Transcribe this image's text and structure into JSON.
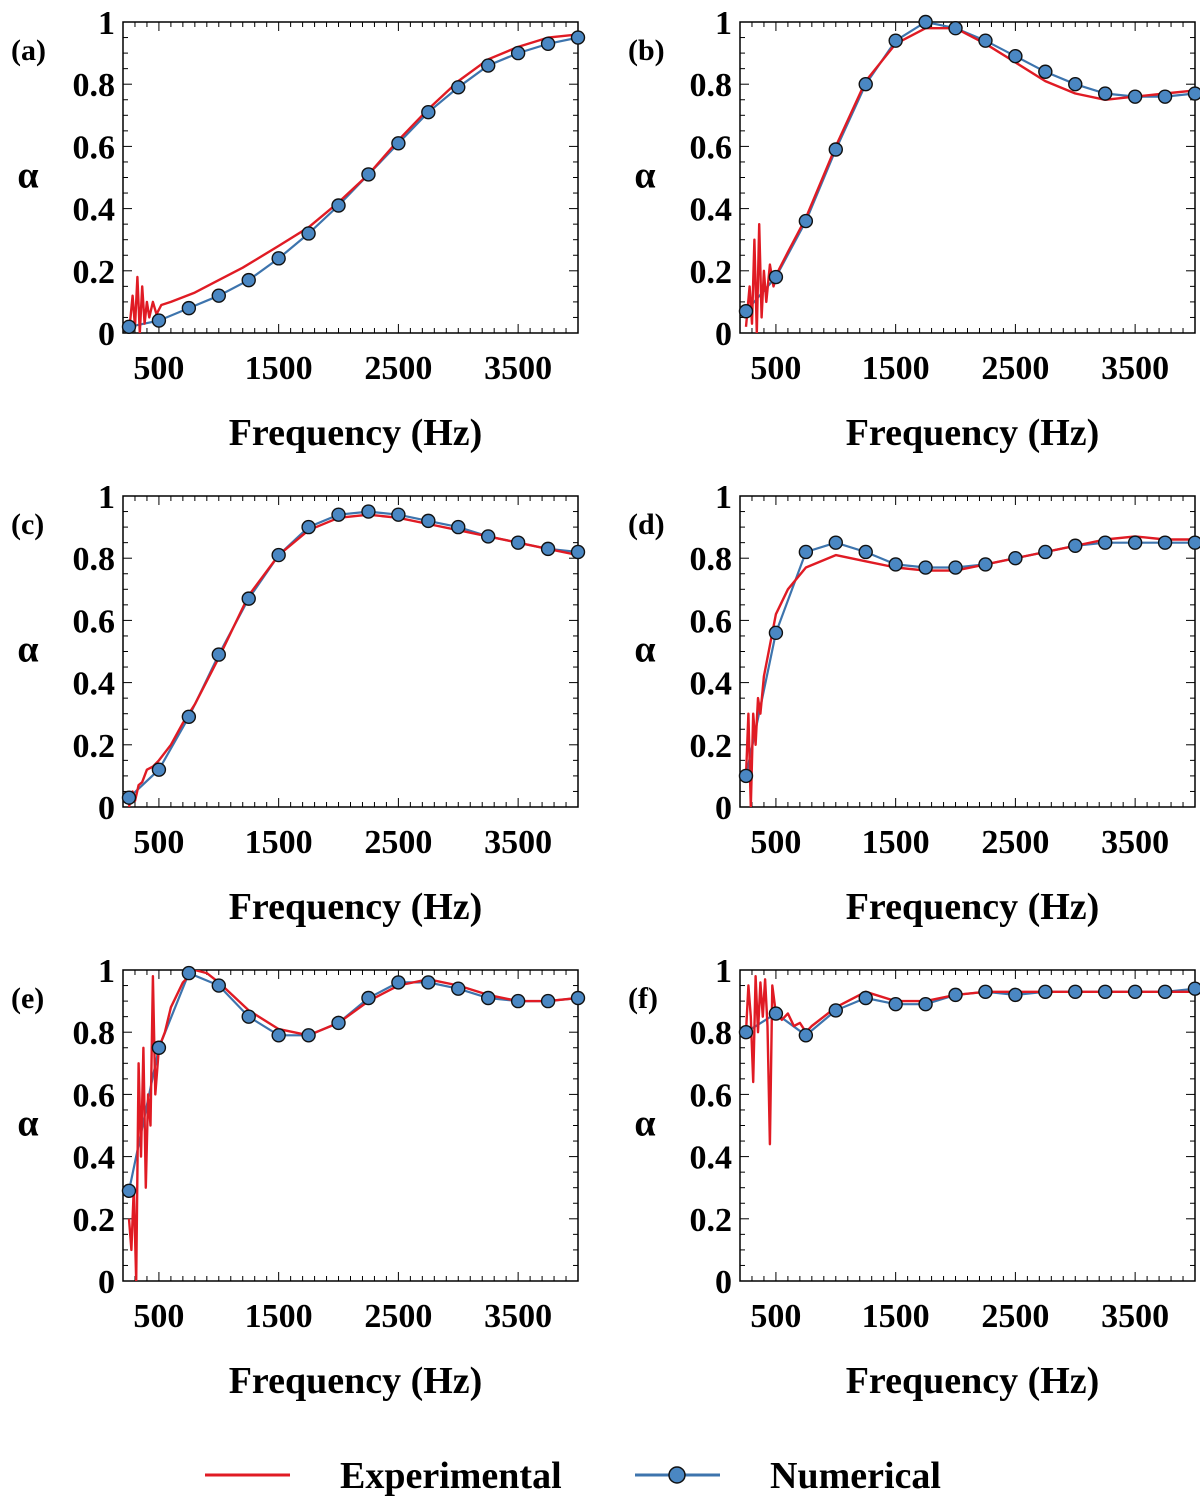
{
  "chart_data": [
    {
      "type": "line",
      "panel_label": "(a)",
      "xlabel": "Frequency (Hz)",
      "ylabel": "α",
      "xlim": [
        200,
        4000
      ],
      "ylim": [
        0,
        1
      ],
      "x_ticks": [
        500,
        1500,
        2500,
        3500
      ],
      "y_ticks": [
        0,
        0.2,
        0.4,
        0.6,
        0.8,
        1
      ],
      "y_tick_labels": [
        "0",
        "0.2",
        "0.4",
        "0.6",
        "0.8",
        "1"
      ],
      "series": [
        {
          "name": "Experimental",
          "x": [
            250,
            280,
            300,
            320,
            340,
            360,
            380,
            400,
            420,
            450,
            480,
            520,
            600,
            800,
            1000,
            1200,
            1500,
            1750,
            2000,
            2250,
            2500,
            2750,
            3000,
            3250,
            3500,
            3750,
            4000
          ],
          "y": [
            0.0,
            0.12,
            0.02,
            0.18,
            0.0,
            0.15,
            0.03,
            0.1,
            0.05,
            0.1,
            0.06,
            0.09,
            0.1,
            0.13,
            0.17,
            0.21,
            0.28,
            0.34,
            0.42,
            0.51,
            0.62,
            0.72,
            0.81,
            0.88,
            0.92,
            0.95,
            0.96
          ]
        },
        {
          "name": "Numerical",
          "x": [
            250,
            500,
            750,
            1000,
            1250,
            1500,
            1750,
            2000,
            2250,
            2500,
            2750,
            3000,
            3250,
            3500,
            3750,
            4000
          ],
          "y": [
            0.02,
            0.04,
            0.08,
            0.12,
            0.17,
            0.24,
            0.32,
            0.41,
            0.51,
            0.61,
            0.71,
            0.79,
            0.86,
            0.9,
            0.93,
            0.95
          ]
        }
      ]
    },
    {
      "type": "line",
      "panel_label": "(b)",
      "xlabel": "Frequency (Hz)",
      "ylabel": "α",
      "xlim": [
        200,
        4000
      ],
      "ylim": [
        0,
        1
      ],
      "x_ticks": [
        500,
        1500,
        2500,
        3500
      ],
      "y_ticks": [
        0,
        0.2,
        0.4,
        0.6,
        0.8,
        1
      ],
      "y_tick_labels": [
        "0",
        "0.2",
        "0.4",
        "0.6",
        "0.8",
        "1"
      ],
      "series": [
        {
          "name": "Experimental",
          "x": [
            250,
            280,
            300,
            320,
            340,
            360,
            380,
            400,
            420,
            450,
            480,
            520,
            600,
            750,
            1000,
            1250,
            1500,
            1750,
            2000,
            2250,
            2500,
            2750,
            3000,
            3250,
            3500,
            3750,
            4000
          ],
          "y": [
            0.02,
            0.15,
            0.03,
            0.3,
            0.0,
            0.35,
            0.05,
            0.2,
            0.1,
            0.22,
            0.15,
            0.2,
            0.26,
            0.37,
            0.6,
            0.81,
            0.93,
            0.98,
            0.98,
            0.93,
            0.87,
            0.81,
            0.77,
            0.75,
            0.76,
            0.77,
            0.78
          ]
        },
        {
          "name": "Numerical",
          "x": [
            250,
            500,
            750,
            1000,
            1250,
            1500,
            1750,
            2000,
            2250,
            2500,
            2750,
            3000,
            3250,
            3500,
            3750,
            4000
          ],
          "y": [
            0.07,
            0.18,
            0.36,
            0.59,
            0.8,
            0.94,
            1.0,
            0.98,
            0.94,
            0.89,
            0.84,
            0.8,
            0.77,
            0.76,
            0.76,
            0.77
          ]
        }
      ]
    },
    {
      "type": "line",
      "panel_label": "(c)",
      "xlabel": "Frequency (Hz)",
      "ylabel": "α",
      "xlim": [
        200,
        4000
      ],
      "ylim": [
        0,
        1
      ],
      "x_ticks": [
        500,
        1500,
        2500,
        3500
      ],
      "y_ticks": [
        0,
        0.2,
        0.4,
        0.6,
        0.8,
        1
      ],
      "y_tick_labels": [
        "0",
        "0.2",
        "0.4",
        "0.6",
        "0.8",
        "1"
      ],
      "series": [
        {
          "name": "Experimental",
          "x": [
            250,
            280,
            300,
            330,
            360,
            400,
            450,
            500,
            600,
            700,
            800,
            1000,
            1250,
            1500,
            1750,
            2000,
            2250,
            2500,
            2750,
            3000,
            3250,
            3500,
            3750,
            4000
          ],
          "y": [
            0.0,
            0.05,
            0.02,
            0.07,
            0.08,
            0.12,
            0.13,
            0.15,
            0.2,
            0.27,
            0.33,
            0.48,
            0.68,
            0.81,
            0.89,
            0.93,
            0.94,
            0.93,
            0.91,
            0.89,
            0.87,
            0.85,
            0.83,
            0.81
          ]
        },
        {
          "name": "Numerical",
          "x": [
            250,
            500,
            750,
            1000,
            1250,
            1500,
            1750,
            2000,
            2250,
            2500,
            2750,
            3000,
            3250,
            3500,
            3750,
            4000
          ],
          "y": [
            0.03,
            0.12,
            0.29,
            0.49,
            0.67,
            0.81,
            0.9,
            0.94,
            0.95,
            0.94,
            0.92,
            0.9,
            0.87,
            0.85,
            0.83,
            0.82
          ]
        }
      ]
    },
    {
      "type": "line",
      "panel_label": "(d)",
      "xlabel": "Frequency (Hz)",
      "ylabel": "α",
      "xlim": [
        200,
        4000
      ],
      "ylim": [
        0,
        1
      ],
      "x_ticks": [
        500,
        1500,
        2500,
        3500
      ],
      "y_ticks": [
        0,
        0.2,
        0.4,
        0.6,
        0.8,
        1
      ],
      "y_tick_labels": [
        "0",
        "0.2",
        "0.4",
        "0.6",
        "0.8",
        "1"
      ],
      "series": [
        {
          "name": "Experimental",
          "x": [
            250,
            270,
            290,
            310,
            330,
            350,
            370,
            400,
            450,
            500,
            600,
            750,
            1000,
            1250,
            1500,
            1750,
            2000,
            2250,
            2500,
            2750,
            3000,
            3250,
            3500,
            3750,
            4000
          ],
          "y": [
            0.1,
            0.3,
            0.0,
            0.3,
            0.2,
            0.35,
            0.3,
            0.42,
            0.52,
            0.62,
            0.7,
            0.77,
            0.81,
            0.79,
            0.77,
            0.76,
            0.76,
            0.78,
            0.8,
            0.82,
            0.84,
            0.86,
            0.87,
            0.86,
            0.86
          ]
        },
        {
          "name": "Numerical",
          "x": [
            250,
            500,
            750,
            1000,
            1250,
            1500,
            1750,
            2000,
            2250,
            2500,
            2750,
            3000,
            3250,
            3500,
            3750,
            4000
          ],
          "y": [
            0.1,
            0.56,
            0.82,
            0.85,
            0.82,
            0.78,
            0.77,
            0.77,
            0.78,
            0.8,
            0.82,
            0.84,
            0.85,
            0.85,
            0.85,
            0.85
          ]
        }
      ]
    },
    {
      "type": "line",
      "panel_label": "(e)",
      "xlabel": "Frequency (Hz)",
      "ylabel": "α",
      "xlim": [
        200,
        4000
      ],
      "ylim": [
        0,
        1
      ],
      "x_ticks": [
        500,
        1500,
        2500,
        3500
      ],
      "y_ticks": [
        0,
        0.2,
        0.4,
        0.6,
        0.8,
        1
      ],
      "y_tick_labels": [
        "0",
        "0.2",
        "0.4",
        "0.6",
        "0.8",
        "1"
      ],
      "series": [
        {
          "name": "Experimental",
          "x": [
            250,
            270,
            290,
            310,
            330,
            350,
            370,
            390,
            410,
            430,
            450,
            470,
            500,
            550,
            600,
            700,
            800,
            900,
            1000,
            1250,
            1500,
            1750,
            2000,
            2250,
            2500,
            2750,
            3000,
            3250,
            3500,
            3750,
            4000
          ],
          "y": [
            0.2,
            0.1,
            0.3,
            0.0,
            0.7,
            0.4,
            0.75,
            0.3,
            0.6,
            0.5,
            0.98,
            0.6,
            0.75,
            0.8,
            0.88,
            0.96,
            1.0,
            0.99,
            0.96,
            0.87,
            0.81,
            0.79,
            0.83,
            0.9,
            0.95,
            0.97,
            0.95,
            0.92,
            0.9,
            0.9,
            0.91
          ]
        },
        {
          "name": "Numerical",
          "x": [
            250,
            500,
            750,
            1000,
            1250,
            1500,
            1750,
            2000,
            2250,
            2500,
            2750,
            3000,
            3250,
            3500,
            3750,
            4000
          ],
          "y": [
            0.29,
            0.75,
            0.99,
            0.95,
            0.85,
            0.79,
            0.79,
            0.83,
            0.91,
            0.96,
            0.96,
            0.94,
            0.91,
            0.9,
            0.9,
            0.91
          ]
        }
      ]
    },
    {
      "type": "line",
      "panel_label": "(f)",
      "xlabel": "Frequency (Hz)",
      "ylabel": "α",
      "xlim": [
        200,
        4000
      ],
      "ylim": [
        0,
        1
      ],
      "x_ticks": [
        500,
        1500,
        2500,
        3500
      ],
      "y_ticks": [
        0,
        0.2,
        0.4,
        0.6,
        0.8,
        1
      ],
      "y_tick_labels": [
        "0",
        "0.2",
        "0.4",
        "0.6",
        "0.8",
        "1"
      ],
      "series": [
        {
          "name": "Experimental",
          "x": [
            250,
            270,
            290,
            310,
            330,
            350,
            370,
            390,
            410,
            430,
            450,
            470,
            500,
            550,
            600,
            650,
            700,
            750,
            800,
            900,
            1000,
            1250,
            1500,
            1750,
            2000,
            2250,
            2500,
            2750,
            3000,
            3250,
            3500,
            3750,
            4000
          ],
          "y": [
            0.8,
            0.95,
            0.85,
            0.64,
            0.98,
            0.8,
            0.96,
            0.85,
            0.97,
            0.82,
            0.44,
            0.95,
            0.86,
            0.84,
            0.86,
            0.82,
            0.83,
            0.8,
            0.82,
            0.85,
            0.88,
            0.93,
            0.9,
            0.9,
            0.92,
            0.93,
            0.93,
            0.93,
            0.93,
            0.93,
            0.93,
            0.93,
            0.93
          ]
        },
        {
          "name": "Numerical",
          "x": [
            250,
            500,
            750,
            1000,
            1250,
            1500,
            1750,
            2000,
            2250,
            2500,
            2750,
            3000,
            3250,
            3500,
            3750,
            4000
          ],
          "y": [
            0.8,
            0.86,
            0.79,
            0.87,
            0.91,
            0.89,
            0.89,
            0.92,
            0.93,
            0.92,
            0.93,
            0.93,
            0.93,
            0.93,
            0.93,
            0.94
          ]
        }
      ]
    }
  ],
  "legend": {
    "items": [
      {
        "label": "Experimental",
        "marker": false
      },
      {
        "label": "Numerical",
        "marker": true
      }
    ]
  },
  "colors": {
    "experimental": "#e01b24",
    "numerical": "#3d74ad",
    "marker_fill": "#4a87c3",
    "axis": "#000000"
  }
}
